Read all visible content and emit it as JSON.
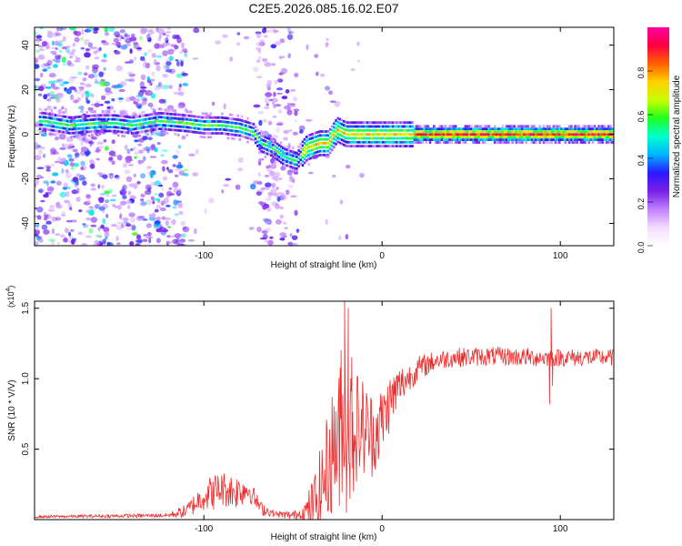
{
  "title": "C2E5.2026.085.16.02.E07",
  "chart_data": [
    {
      "type": "heatmap",
      "title": "C2E5.2026.085.16.02.E07",
      "xlabel": "Height of straight line (km)",
      "ylabel": "Frequency (Hz)",
      "xlim": [
        -195,
        130
      ],
      "ylim": [
        -50,
        48
      ],
      "xticks": [
        -100,
        0,
        100
      ],
      "yticks": [
        40,
        20,
        0,
        -20,
        -40
      ],
      "colorbar": {
        "label": "Normalized spectral amplitude",
        "range": [
          0,
          1
        ],
        "ticks": [
          "0.0",
          "0.2",
          "0.4",
          "0.6",
          "0.8"
        ],
        "tick_values": [
          0.0,
          0.2,
          0.4,
          0.6,
          0.8
        ],
        "colors": [
          "#ffffff",
          "#f2dcff",
          "#c080ff",
          "#7a1fe6",
          "#2a18ff",
          "#00b4ff",
          "#00ffd0",
          "#20ff20",
          "#c8ff00",
          "#ffd000",
          "#ff6000",
          "#ff0040",
          "#ff00a0"
        ]
      },
      "ridge": [
        {
          "x": -190,
          "y": 6
        },
        {
          "x": -175,
          "y": 4
        },
        {
          "x": -160,
          "y": 5
        },
        {
          "x": -150,
          "y": 5
        },
        {
          "x": -140,
          "y": 4
        },
        {
          "x": -125,
          "y": 6
        },
        {
          "x": -110,
          "y": 5
        },
        {
          "x": -100,
          "y": 4
        },
        {
          "x": -90,
          "y": 4
        },
        {
          "x": -80,
          "y": 3
        },
        {
          "x": -72,
          "y": 1
        },
        {
          "x": -68,
          "y": -4
        },
        {
          "x": -62,
          "y": -6
        },
        {
          "x": -55,
          "y": -10
        },
        {
          "x": -48,
          "y": -12
        },
        {
          "x": -42,
          "y": -6
        },
        {
          "x": -35,
          "y": -4
        },
        {
          "x": -30,
          "y": -4
        },
        {
          "x": -25,
          "y": 2
        },
        {
          "x": -20,
          "y": 0
        },
        {
          "x": -10,
          "y": 0
        },
        {
          "x": 0,
          "y": 0
        },
        {
          "x": 10,
          "y": 0
        },
        {
          "x": 20,
          "y": 0
        },
        {
          "x": 60,
          "y": 0
        },
        {
          "x": 100,
          "y": 0
        },
        {
          "x": 130,
          "y": 0
        }
      ]
    },
    {
      "type": "line",
      "xlabel": "Height of straight line (km)",
      "ylabel": "SNR (10 * V/V)",
      "y_multiplier": "(x10",
      "y_multiplier_exp": "4",
      "y_multiplier_close": ")",
      "xlim": [
        -195,
        130
      ],
      "ylim": [
        0,
        1.55
      ],
      "xticks": [
        -100,
        0,
        100
      ],
      "yticks": [
        0.5,
        1.0,
        1.5
      ],
      "ytick_labels": [
        "0.5",
        "1.0",
        "1.5"
      ],
      "color": "#ee2a2a",
      "envelope": [
        {
          "x": -195,
          "y": 0.02
        },
        {
          "x": -120,
          "y": 0.03
        },
        {
          "x": -110,
          "y": 0.06
        },
        {
          "x": -100,
          "y": 0.17
        },
        {
          "x": -90,
          "y": 0.22
        },
        {
          "x": -82,
          "y": 0.2
        },
        {
          "x": -75,
          "y": 0.22
        },
        {
          "x": -68,
          "y": 0.08
        },
        {
          "x": -60,
          "y": 0.04
        },
        {
          "x": -50,
          "y": 0.03
        },
        {
          "x": -42,
          "y": 0.06
        },
        {
          "x": -36,
          "y": 0.15
        },
        {
          "x": -30,
          "y": 0.4
        },
        {
          "x": -25,
          "y": 0.6
        },
        {
          "x": -20,
          "y": 0.7
        },
        {
          "x": -10,
          "y": 0.65
        },
        {
          "x": -5,
          "y": 0.6
        },
        {
          "x": 0,
          "y": 0.7
        },
        {
          "x": 5,
          "y": 0.85
        },
        {
          "x": 10,
          "y": 0.95
        },
        {
          "x": 20,
          "y": 1.07
        },
        {
          "x": 30,
          "y": 1.13
        },
        {
          "x": 40,
          "y": 1.15
        },
        {
          "x": 60,
          "y": 1.16
        },
        {
          "x": 90,
          "y": 1.15
        },
        {
          "x": 130,
          "y": 1.15
        }
      ],
      "noise": [
        {
          "x": -195,
          "a": 0.01
        },
        {
          "x": -120,
          "a": 0.015
        },
        {
          "x": -110,
          "a": 0.05
        },
        {
          "x": -95,
          "a": 0.13
        },
        {
          "x": -80,
          "a": 0.12
        },
        {
          "x": -70,
          "a": 0.06
        },
        {
          "x": -60,
          "a": 0.02
        },
        {
          "x": -45,
          "a": 0.04
        },
        {
          "x": -35,
          "a": 0.3
        },
        {
          "x": -25,
          "a": 0.5
        },
        {
          "x": -18,
          "a": 0.45
        },
        {
          "x": -5,
          "a": 0.3
        },
        {
          "x": 5,
          "a": 0.2
        },
        {
          "x": 15,
          "a": 0.1
        },
        {
          "x": 30,
          "a": 0.07
        },
        {
          "x": 130,
          "a": 0.06
        }
      ],
      "spikes": [
        {
          "x": -21,
          "y": 1.55
        },
        {
          "x": -20,
          "y": 0.05
        },
        {
          "x": -19,
          "y": 1.5
        },
        {
          "x": -18,
          "y": 0.15
        },
        {
          "x": -17,
          "y": 1.15
        },
        {
          "x": -16,
          "y": 0.2
        },
        {
          "x": -23,
          "y": 1.2
        },
        {
          "x": -24,
          "y": 0.1
        },
        {
          "x": 94,
          "y": 0.82
        },
        {
          "x": 94.8,
          "y": 1.5
        },
        {
          "x": 95.6,
          "y": 0.95
        }
      ]
    }
  ]
}
